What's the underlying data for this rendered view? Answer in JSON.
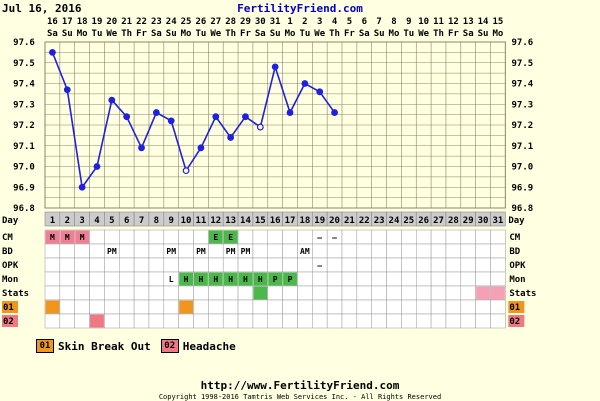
{
  "header": {
    "date": "Jul 16, 2016",
    "site": "FertilityFriend.com"
  },
  "footer": {
    "url": "http://www.FertilityFriend.com",
    "copyright": "Copyright 1998-2016 Tamtris Web Services Inc. - All Rights Reserved"
  },
  "legend": [
    {
      "code": "01",
      "label": "Skin Break Out",
      "color": "#f0961e"
    },
    {
      "code": "02",
      "label": "Headache",
      "color": "#f07882"
    }
  ],
  "colors": {
    "line": "#2020e0",
    "grid": "#888866",
    "cm_fertile": "#f07f93",
    "cm_egg": "#4cb84c",
    "mon_high": "#4cb84c",
    "stats": "#f5a0b4",
    "s1": "#f0961e",
    "s2": "#f07882",
    "row_label_bg": "#cccccc"
  },
  "chart_data": {
    "type": "line",
    "title": "",
    "ylim": [
      96.8,
      97.6
    ],
    "yticks": [
      "97.6",
      "97.5",
      "97.4",
      "97.3",
      "97.2",
      "97.1",
      "97.0",
      "96.9",
      "96.8"
    ],
    "dates": [
      "16",
      "17",
      "18",
      "19",
      "20",
      "21",
      "22",
      "23",
      "24",
      "25",
      "26",
      "27",
      "28",
      "29",
      "30",
      "31",
      "1",
      "2",
      "3",
      "4",
      "5",
      "6",
      "7",
      "8",
      "9",
      "10",
      "11",
      "12",
      "13",
      "14",
      "15"
    ],
    "weekdays": [
      "Sa",
      "Su",
      "Mo",
      "Tu",
      "We",
      "Th",
      "Fr",
      "Sa",
      "Su",
      "Mo",
      "Tu",
      "We",
      "Th",
      "Fr",
      "Sa",
      "Su",
      "Mo",
      "Tu",
      "We",
      "Th",
      "Fr",
      "Sa",
      "Su",
      "Mo",
      "Tu",
      "We",
      "Th",
      "Fr",
      "Sa",
      "Su",
      "Mo"
    ],
    "day_label": "Day",
    "days": [
      "1",
      "2",
      "3",
      "4",
      "5",
      "6",
      "7",
      "8",
      "9",
      "10",
      "11",
      "12",
      "13",
      "14",
      "15",
      "16",
      "17",
      "18",
      "19",
      "20",
      "21",
      "22",
      "23",
      "24",
      "25",
      "26",
      "27",
      "28",
      "29",
      "30",
      "31"
    ],
    "temps": [
      97.55,
      97.37,
      96.9,
      97.0,
      97.32,
      97.24,
      97.09,
      97.26,
      97.22,
      96.98,
      97.09,
      97.24,
      97.14,
      97.24,
      97.19,
      97.48,
      97.26,
      97.4,
      97.36,
      97.26
    ],
    "open_points": [
      9,
      14
    ],
    "rows": [
      {
        "label": "CM",
        "cells": [
          {
            "day": 1,
            "text": "M",
            "bg": "cm_fertile"
          },
          {
            "day": 2,
            "text": "M",
            "bg": "cm_fertile"
          },
          {
            "day": 3,
            "text": "M",
            "bg": "cm_fertile"
          },
          {
            "day": 12,
            "text": "E",
            "bg": "cm_egg"
          },
          {
            "day": 13,
            "text": "E",
            "bg": "cm_egg"
          },
          {
            "day": 19,
            "text": "—"
          },
          {
            "day": 20,
            "text": "—"
          }
        ]
      },
      {
        "label": "BD",
        "cells": [
          {
            "day": 5,
            "text": "PM"
          },
          {
            "day": 9,
            "text": "PM"
          },
          {
            "day": 11,
            "text": "PM"
          },
          {
            "day": 13,
            "text": "PM"
          },
          {
            "day": 14,
            "text": "PM"
          },
          {
            "day": 18,
            "text": "AM"
          }
        ]
      },
      {
        "label": "OPK",
        "cells": [
          {
            "day": 19,
            "text": "—"
          }
        ]
      },
      {
        "label": "Mon",
        "cells": [
          {
            "day": 9,
            "text": "L"
          },
          {
            "day": 10,
            "text": "H",
            "bg": "mon_high"
          },
          {
            "day": 11,
            "text": "H",
            "bg": "mon_high"
          },
          {
            "day": 12,
            "text": "H",
            "bg": "mon_high"
          },
          {
            "day": 13,
            "text": "H",
            "bg": "mon_high"
          },
          {
            "day": 14,
            "text": "H",
            "bg": "mon_high"
          },
          {
            "day": 15,
            "text": "H",
            "bg": "mon_high"
          },
          {
            "day": 16,
            "text": "P",
            "bg": "mon_high"
          },
          {
            "day": 17,
            "text": "P",
            "bg": "mon_high"
          }
        ]
      },
      {
        "label": "Stats",
        "cells": [
          {
            "day": 15,
            "text": "",
            "bg": "mon_high"
          },
          {
            "day": 30,
            "text": "",
            "bg": "stats"
          },
          {
            "day": 31,
            "text": "",
            "bg": "stats"
          }
        ]
      },
      {
        "label": "01",
        "label_bg": "s1",
        "cells": [
          {
            "day": 1,
            "text": "",
            "bg": "s1"
          },
          {
            "day": 10,
            "text": "",
            "bg": "s1"
          }
        ]
      },
      {
        "label": "02",
        "label_bg": "s2",
        "cells": [
          {
            "day": 4,
            "text": "",
            "bg": "s2"
          }
        ]
      }
    ]
  }
}
